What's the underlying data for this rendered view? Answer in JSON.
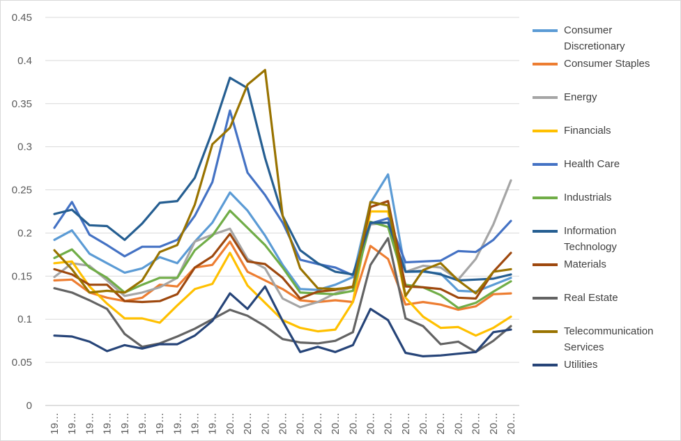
{
  "chart_data": {
    "type": "line",
    "categories": [
      "19…",
      "19…",
      "19…",
      "19…",
      "19…",
      "19…",
      "19…",
      "19…",
      "19…",
      "19…",
      "20…",
      "20…",
      "20…",
      "20…",
      "20…",
      "20…",
      "20…",
      "20…",
      "20…",
      "20…",
      "20…",
      "20…",
      "20…",
      "20…",
      "20…",
      "20…",
      "20…"
    ],
    "ylim": [
      0,
      0.45
    ],
    "yticks": [
      0,
      0.05,
      0.1,
      0.15,
      0.2,
      0.25,
      0.3,
      0.35,
      0.4,
      0.45
    ],
    "grid": true,
    "legend": "right",
    "series": [
      {
        "name": "Consumer Discretionary",
        "color": "#5b9bd5",
        "values": [
          0.192,
          0.203,
          0.176,
          0.165,
          0.154,
          0.159,
          0.172,
          0.165,
          0.19,
          0.212,
          0.247,
          0.226,
          0.197,
          0.163,
          0.135,
          0.134,
          0.14,
          0.149,
          0.235,
          0.268,
          0.155,
          0.155,
          0.153,
          0.133,
          0.132,
          0.14,
          0.148
        ]
      },
      {
        "name": "Consumer Staples",
        "color": "#ed7d31",
        "values": [
          0.145,
          0.146,
          0.131,
          0.125,
          0.121,
          0.125,
          0.14,
          0.138,
          0.16,
          0.163,
          0.19,
          0.155,
          0.145,
          0.135,
          0.122,
          0.12,
          0.122,
          0.12,
          0.185,
          0.17,
          0.117,
          0.12,
          0.117,
          0.111,
          0.115,
          0.129,
          0.13
        ]
      },
      {
        "name": "Energy",
        "color": "#a5a5a5",
        "values": [
          0.149,
          0.165,
          0.162,
          0.145,
          0.127,
          0.131,
          0.137,
          0.148,
          0.19,
          0.198,
          0.205,
          0.17,
          0.159,
          0.124,
          0.114,
          0.12,
          0.13,
          0.138,
          0.21,
          0.212,
          0.155,
          0.162,
          0.16,
          0.146,
          0.17,
          0.21,
          0.261
        ]
      },
      {
        "name": "Financials",
        "color": "#ffc000",
        "values": [
          0.165,
          0.167,
          0.138,
          0.118,
          0.101,
          0.101,
          0.096,
          0.116,
          0.135,
          0.141,
          0.177,
          0.139,
          0.119,
          0.099,
          0.09,
          0.086,
          0.088,
          0.12,
          0.225,
          0.225,
          0.125,
          0.103,
          0.09,
          0.091,
          0.081,
          0.09,
          0.103
        ]
      },
      {
        "name": "Health Care",
        "color": "#4472c4",
        "values": [
          0.206,
          0.236,
          0.198,
          0.186,
          0.173,
          0.184,
          0.184,
          0.192,
          0.22,
          0.259,
          0.342,
          0.27,
          0.244,
          0.212,
          0.169,
          0.164,
          0.16,
          0.151,
          0.211,
          0.217,
          0.166,
          0.167,
          0.168,
          0.179,
          0.178,
          0.192,
          0.214
        ]
      },
      {
        "name": "Industrials",
        "color": "#70ad47",
        "values": [
          0.171,
          0.181,
          0.16,
          0.148,
          0.131,
          0.14,
          0.148,
          0.148,
          0.18,
          0.197,
          0.226,
          0.206,
          0.186,
          0.16,
          0.131,
          0.13,
          0.129,
          0.133,
          0.213,
          0.207,
          0.14,
          0.137,
          0.128,
          0.113,
          0.119,
          0.132,
          0.144
        ]
      },
      {
        "name": "Information Technology",
        "color": "#255e91",
        "values": [
          0.222,
          0.227,
          0.209,
          0.208,
          0.192,
          0.211,
          0.235,
          0.237,
          0.264,
          0.318,
          0.38,
          0.368,
          0.287,
          0.22,
          0.18,
          0.165,
          0.155,
          0.152,
          0.212,
          0.212,
          0.155,
          0.156,
          0.152,
          0.145,
          0.146,
          0.147,
          0.152
        ]
      },
      {
        "name": "Materials",
        "color": "#9e480e",
        "values": [
          0.158,
          0.152,
          0.14,
          0.14,
          0.121,
          0.12,
          0.121,
          0.129,
          0.16,
          0.173,
          0.199,
          0.167,
          0.164,
          0.148,
          0.124,
          0.132,
          0.134,
          0.138,
          0.23,
          0.237,
          0.138,
          0.137,
          0.135,
          0.125,
          0.124,
          0.155,
          0.177
        ]
      },
      {
        "name": "Real Estate",
        "color": "#636363",
        "values": [
          0.136,
          0.131,
          0.122,
          0.112,
          0.083,
          0.068,
          0.072,
          0.08,
          0.089,
          0.1,
          0.111,
          0.104,
          0.092,
          0.077,
          0.073,
          0.072,
          0.075,
          0.085,
          0.163,
          0.194,
          0.101,
          0.092,
          0.071,
          0.074,
          0.062,
          0.075,
          0.092
        ]
      },
      {
        "name": "Telecommunication Services",
        "color": "#997300",
        "values": [
          0.18,
          0.158,
          0.131,
          0.133,
          0.131,
          0.145,
          0.178,
          0.186,
          0.233,
          0.303,
          0.322,
          0.372,
          0.389,
          0.22,
          0.159,
          0.136,
          0.135,
          0.137,
          0.236,
          0.232,
          0.127,
          0.157,
          0.165,
          0.145,
          0.13,
          0.155,
          0.158
        ]
      },
      {
        "name": "Utilities",
        "color": "#264478",
        "values": [
          0.081,
          0.08,
          0.074,
          0.063,
          0.07,
          0.066,
          0.071,
          0.071,
          0.081,
          0.098,
          0.13,
          0.112,
          0.138,
          0.098,
          0.062,
          0.068,
          0.062,
          0.07,
          0.112,
          0.099,
          0.061,
          0.057,
          0.058,
          0.06,
          0.062,
          0.085,
          0.088
        ]
      }
    ]
  }
}
